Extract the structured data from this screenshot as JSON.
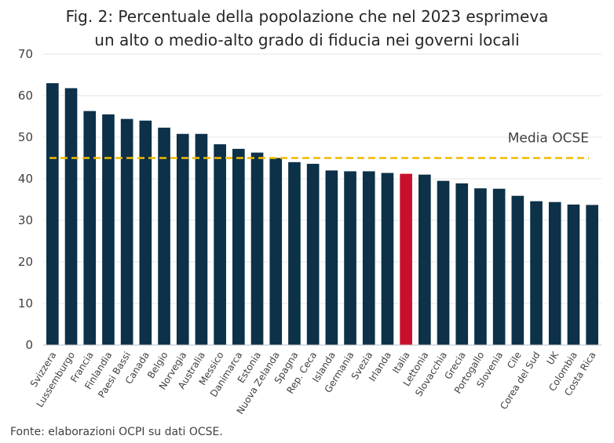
{
  "title_line1": "Fig. 2: Percentuale della popolazione che nel 2023 esprimeva",
  "title_line2": "un alto o medio-alto grado di fiducia nei governi locali",
  "source": "Fonte: elaborazioni OCPI su dati OCSE.",
  "colors": {
    "bar": "#0c3149",
    "highlight": "#c8102e",
    "average_line": "#f2b900",
    "grid": "#e6e6e6",
    "axis_text": "#404040"
  },
  "chart_data": {
    "type": "bar",
    "title": "Fig. 2: Percentuale della popolazione che nel 2023 esprimeva un alto o medio-alto grado di fiducia nei governi locali",
    "categories": [
      "Svizzera",
      "Lussemburgo",
      "Francia",
      "Finlandia",
      "Paesi Bassi",
      "Canada",
      "Belgio",
      "Norvegia",
      "Australia",
      "Messico",
      "Danimarca",
      "Estonia",
      "Nuova Zelanda",
      "Spagna",
      "Rep. Ceca",
      "Islanda",
      "Germania",
      "Svezia",
      "Irlanda",
      "Italia",
      "Lettonia",
      "Slovacchia",
      "Grecia",
      "Portogallo",
      "Slovenia",
      "Cile",
      "Corea del Sud",
      "UK",
      "Colombia",
      "Costa Rica"
    ],
    "values": [
      63.0,
      61.8,
      56.3,
      55.5,
      54.4,
      54.0,
      52.3,
      50.8,
      50.8,
      48.3,
      47.2,
      46.3,
      45.0,
      44.0,
      43.6,
      42.0,
      41.8,
      41.8,
      41.4,
      41.2,
      41.0,
      39.5,
      38.9,
      37.7,
      37.6,
      35.9,
      34.6,
      34.4,
      33.8,
      33.7
    ],
    "highlight": "Italia",
    "average": {
      "label": "Media OCSE",
      "value": 45.0
    },
    "ylim": [
      0,
      70
    ],
    "yticks": [
      0,
      10,
      20,
      30,
      40,
      50,
      60,
      70
    ],
    "grid": true,
    "xlabel": "",
    "ylabel": ""
  }
}
